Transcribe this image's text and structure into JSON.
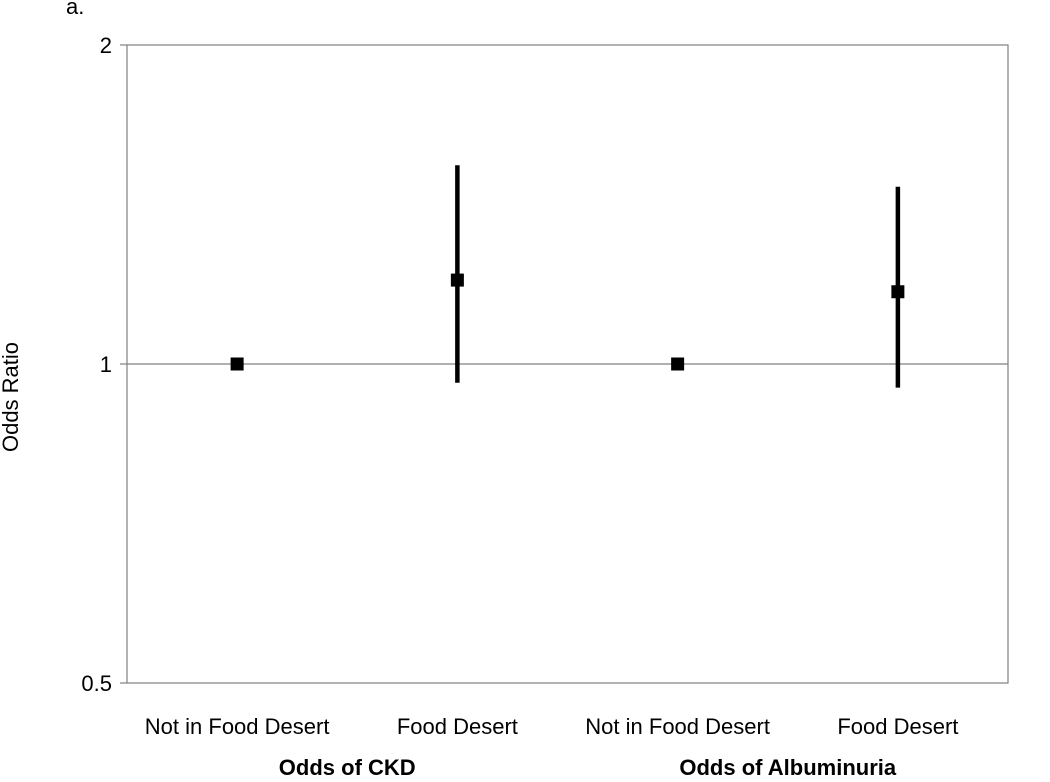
{
  "panel_label": "a.",
  "chart_data": {
    "type": "scatter",
    "title": "",
    "ylabel": "Odds Ratio",
    "xlabel": "",
    "yscale": "log",
    "ylim": [
      0.5,
      2
    ],
    "yticks": [
      "2",
      "1",
      "0.5"
    ],
    "ytick_values": [
      2,
      1,
      0.5
    ],
    "reference_line": 1,
    "grid": false,
    "legend": "none",
    "groups": [
      {
        "label": "Odds of CKD",
        "categories": [
          {
            "label": "Not in Food Desert",
            "or": 1.0,
            "ci": null
          },
          {
            "label": "Food Desert",
            "or": 1.2,
            "ci": [
              0.96,
              1.54
            ]
          }
        ]
      },
      {
        "label": "Odds of Albuminuria",
        "categories": [
          {
            "label": "Not in Food Desert",
            "or": 1.0,
            "ci": null
          },
          {
            "label": "Food Desert",
            "or": 1.17,
            "ci": [
              0.95,
              1.47
            ]
          }
        ]
      }
    ],
    "colors": {
      "marker": "#000000",
      "errorbar": "#000000",
      "reference_line": "#808080",
      "axis": "#808080"
    }
  }
}
